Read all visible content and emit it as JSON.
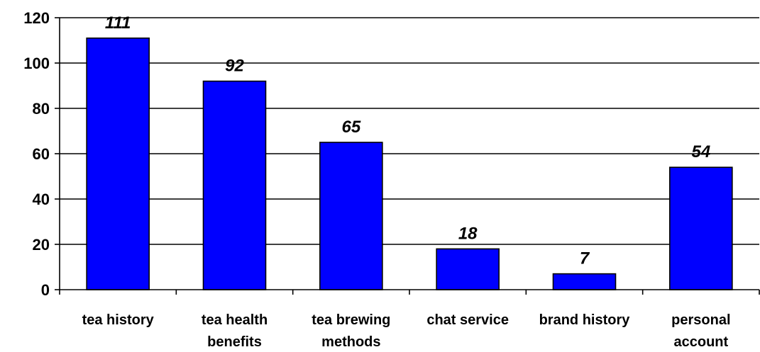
{
  "chart_data": {
    "type": "bar",
    "categories": [
      [
        "tea history"
      ],
      [
        "tea health",
        "benefits"
      ],
      [
        "tea brewing",
        "methods"
      ],
      [
        "chat service"
      ],
      [
        "brand history"
      ],
      [
        "personal",
        "account"
      ]
    ],
    "values": [
      111,
      92,
      65,
      18,
      7,
      54
    ],
    "ylim": [
      0,
      120
    ],
    "yticks": [
      "0",
      "20",
      "40",
      "60",
      "80",
      "100",
      "120"
    ],
    "grid": true,
    "legend": "none",
    "bar_color": "#0000FF",
    "bar_edge_color": "#000000",
    "title": "",
    "xlabel": "",
    "ylabel": ""
  }
}
